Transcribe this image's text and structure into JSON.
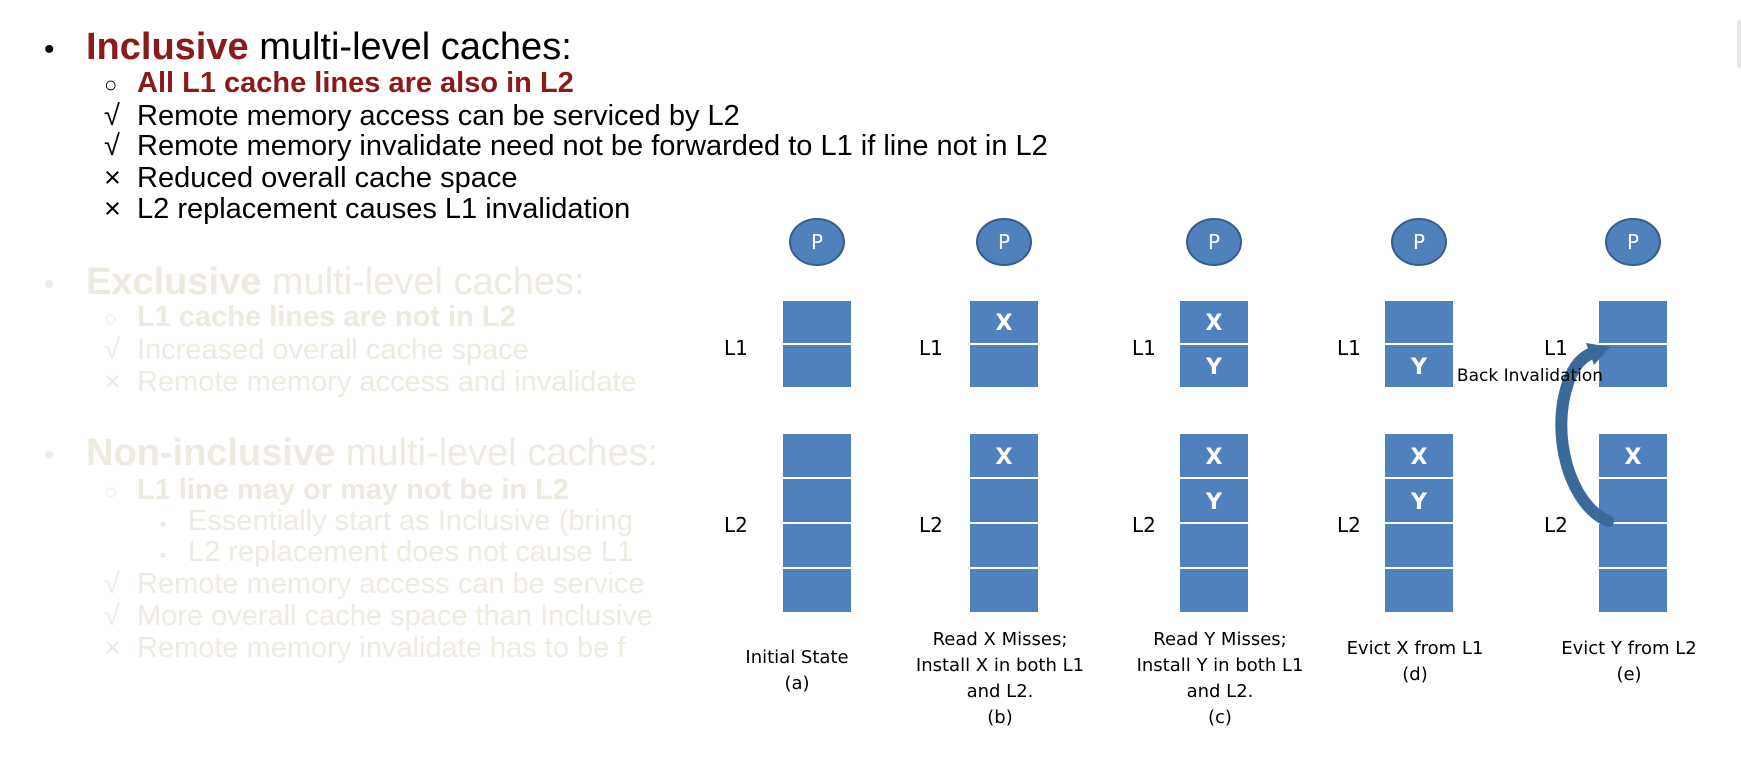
{
  "inclusive": {
    "bullet": "•",
    "keyword": "Inclusive",
    "rest": " multi-level caches:",
    "sub_marker": "○",
    "sub_text": "All L1 cache lines are also in L2",
    "points": [
      {
        "mark": "√",
        "text": "Remote memory access can be serviced by L2"
      },
      {
        "mark": "√",
        "text": "Remote memory invalidate need not be forwarded to L1 if line not in L2"
      },
      {
        "mark": "×",
        "text": "Reduced overall cache space"
      },
      {
        "mark": "×",
        "text": "L2 replacement causes L1 invalidation"
      }
    ]
  },
  "exclusive": {
    "bullet": "•",
    "keyword": "Exclusive",
    "rest": " multi-level caches:",
    "sub_marker": "○",
    "sub_text": "L1 cache lines are not in L2",
    "points": [
      {
        "mark": "√",
        "text": "Increased overall cache space"
      },
      {
        "mark": "×",
        "text": "Remote memory access and invalidate"
      }
    ]
  },
  "noninclusive": {
    "bullet": "•",
    "keyword": "Non-inclusive",
    "rest": " multi-level caches:",
    "sub_marker": "○",
    "sub_text": "L1 line may or may not be in L2",
    "subsub": [
      {
        "mark": "▪",
        "text": "Essentially start as Inclusive (bring"
      },
      {
        "mark": "▪",
        "text": "L2 replacement does not cause L1"
      }
    ],
    "points": [
      {
        "mark": "√",
        "text": "Remote memory access can be service"
      },
      {
        "mark": "√",
        "text": "More overall cache space than Inclusive"
      },
      {
        "mark": "×",
        "text": "Remote memory invalidate has to be f"
      }
    ]
  },
  "diagram": {
    "colors": {
      "block": "#4f81bd",
      "proc_fill": "#4f81bd",
      "proc_stroke": "#385d8a",
      "arrow": "#3b6a9a",
      "line": "#ffffff"
    },
    "processor_label": "P",
    "l1_label": "L1",
    "l2_label": "L2",
    "back_invalidation_label": "Back Invalidation",
    "panels": [
      {
        "l1": [
          "",
          ""
        ],
        "l2": [
          "",
          "",
          "",
          ""
        ],
        "caption": [
          "Initial State",
          "(a)"
        ]
      },
      {
        "l1": [
          "X",
          ""
        ],
        "l2": [
          "X",
          "",
          "",
          ""
        ],
        "caption": [
          "Read X Misses;",
          "Install X in both L1",
          "and L2.",
          "(b)"
        ]
      },
      {
        "l1": [
          "X",
          "Y"
        ],
        "l2": [
          "X",
          "Y",
          "",
          ""
        ],
        "caption": [
          "Read Y Misses;",
          "Install Y in both L1",
          "and L2.",
          "(c)"
        ]
      },
      {
        "l1": [
          "",
          "Y"
        ],
        "l2": [
          "X",
          "Y",
          "",
          ""
        ],
        "caption": [
          "Evict X from L1",
          "(d)"
        ]
      },
      {
        "l1": [
          "",
          ""
        ],
        "l2": [
          "X",
          "",
          "",
          ""
        ],
        "caption": [
          "Evict  Y from L2",
          "(e)"
        ],
        "back_invalidation": true
      }
    ]
  }
}
